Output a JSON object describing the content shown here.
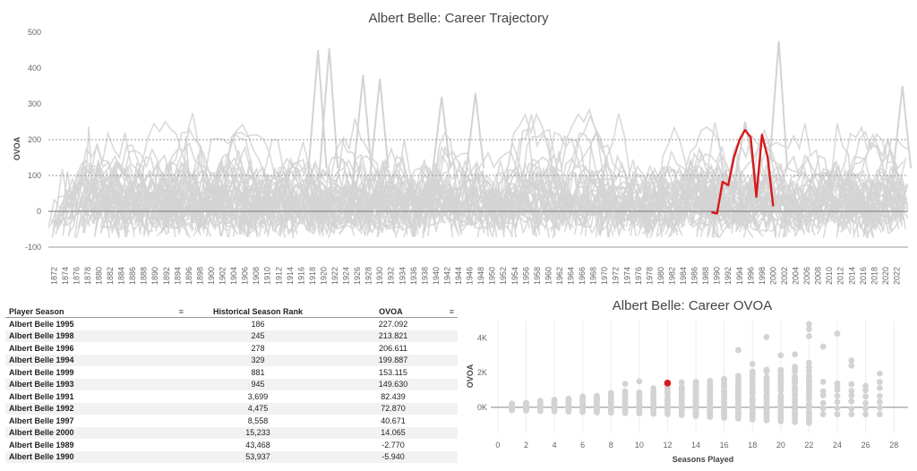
{
  "top_chart": {
    "title": "Albert Belle: Career Trajectory",
    "ylabel": "OVOA",
    "yticks": [
      500,
      400,
      300,
      200,
      100,
      0,
      -100
    ],
    "ytick_labels": [
      "500",
      "400",
      "300",
      "200",
      "100",
      "0",
      "-100"
    ],
    "xticks": [
      1872,
      1874,
      1876,
      1878,
      1880,
      1882,
      1884,
      1886,
      1888,
      1890,
      1892,
      1894,
      1896,
      1898,
      1900,
      1902,
      1904,
      1906,
      1908,
      1910,
      1912,
      1914,
      1916,
      1918,
      1920,
      1922,
      1924,
      1926,
      1928,
      1930,
      1932,
      1934,
      1936,
      1938,
      1940,
      1942,
      1944,
      1946,
      1948,
      1950,
      1952,
      1954,
      1956,
      1958,
      1960,
      1962,
      1964,
      1966,
      1968,
      1970,
      1972,
      1974,
      1976,
      1978,
      1980,
      1982,
      1984,
      1986,
      1988,
      1990,
      1992,
      1994,
      1996,
      1998,
      2000,
      2002,
      2004,
      2006,
      2008,
      2010,
      2012,
      2014,
      2016,
      2018,
      2020,
      2022
    ]
  },
  "chart_data": [
    {
      "type": "line",
      "title": "Albert Belle: Career Trajectory",
      "xlabel": "",
      "ylabel": "OVOA",
      "xlim": [
        1871,
        2024
      ],
      "ylim": [
        -140,
        500
      ],
      "grid": "dotted reference lines at 100 and 200",
      "series": [
        {
          "name": "Albert Belle",
          "color": "#d7191c",
          "x": [
            1989,
            1990,
            1991,
            1992,
            1993,
            1994,
            1995,
            1996,
            1997,
            1998,
            1999,
            2000
          ],
          "y": [
            -2.77,
            -5.94,
            82.439,
            72.87,
            149.63,
            199.887,
            227.092,
            206.611,
            40.671,
            213.821,
            153.115,
            14.065
          ]
        }
      ],
      "background_series_color": "#d3d3d3"
    },
    {
      "type": "scatter",
      "title": "Albert Belle: Career OVOA",
      "xlabel": "Seasons Played",
      "ylabel": "OVOA",
      "xlim": [
        -0.5,
        29
      ],
      "ylim": [
        -1500,
        5000
      ],
      "xticks": [
        0,
        2,
        4,
        6,
        8,
        10,
        12,
        14,
        16,
        18,
        20,
        22,
        24,
        26,
        28
      ],
      "yticks": [
        0,
        2000,
        4000
      ],
      "ytick_labels": [
        "0K",
        "2K",
        "4K"
      ],
      "highlight": {
        "name": "Albert Belle",
        "x": 12,
        "y": 1396.5,
        "color": "#d7191c"
      },
      "background_color": "#d3d3d3"
    }
  ],
  "bottom_chart": {
    "title": "Albert Belle: Career OVOA",
    "xlabel": "Seasons Played",
    "ylabel": "OVOA"
  },
  "table": {
    "headers": {
      "player": "Player Season",
      "rank": "Historical Season Rank",
      "ovoa": "OVOA"
    },
    "rows": [
      {
        "player": "Albert Belle 1995",
        "rank": "186",
        "ovoa": "227.092"
      },
      {
        "player": "Albert Belle 1998",
        "rank": "245",
        "ovoa": "213.821"
      },
      {
        "player": "Albert Belle 1996",
        "rank": "278",
        "ovoa": "206.611"
      },
      {
        "player": "Albert Belle 1994",
        "rank": "329",
        "ovoa": "199.887"
      },
      {
        "player": "Albert Belle 1999",
        "rank": "881",
        "ovoa": "153.115"
      },
      {
        "player": "Albert Belle 1993",
        "rank": "945",
        "ovoa": "149.630"
      },
      {
        "player": "Albert Belle 1991",
        "rank": "3,699",
        "ovoa": "82.439"
      },
      {
        "player": "Albert Belle 1992",
        "rank": "4,475",
        "ovoa": "72.870"
      },
      {
        "player": "Albert Belle 1997",
        "rank": "8,558",
        "ovoa": "40.671"
      },
      {
        "player": "Albert Belle 2000",
        "rank": "15,233",
        "ovoa": "14.065"
      },
      {
        "player": "Albert Belle 1989",
        "rank": "43,468",
        "ovoa": "-2.770"
      },
      {
        "player": "Albert Belle 1990",
        "rank": "53,937",
        "ovoa": "-5.940"
      }
    ]
  }
}
